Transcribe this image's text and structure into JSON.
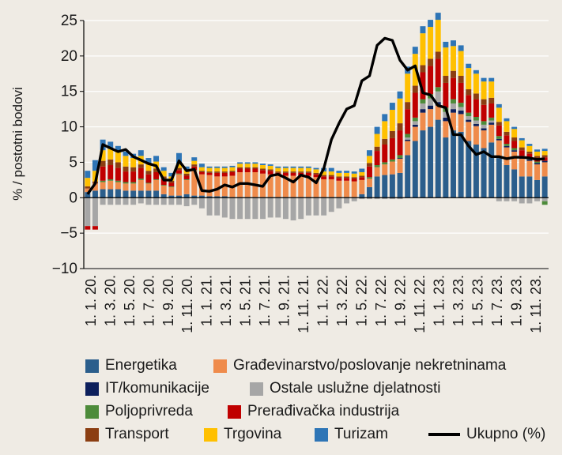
{
  "colors": {
    "background": "#efebe4",
    "grid": "#ffffff",
    "energetika": "#2b5e8c",
    "gradevinarstvo": "#ef8b4b",
    "it": "#0d1f5c",
    "ostale": "#a6a6a6",
    "poljoprivreda": "#4d8b3a",
    "preradivacka": "#c00000",
    "transport": "#8b3e12",
    "trgovina": "#ffc000",
    "turizam": "#2e75b6",
    "ukupno": "#000000"
  },
  "chart_data": {
    "type": "bar",
    "stacked": true,
    "title": "",
    "xlabel": "",
    "ylabel": "% / postotni bodovi",
    "ylim": [
      -10,
      25
    ],
    "yticks": [
      25,
      20,
      15,
      10,
      5,
      0,
      -5,
      -10
    ],
    "grid": "horizontal",
    "legend_position": "bottom",
    "x_tick_labels": [
      "1. 1. 20.",
      "1. 3. 20.",
      "1. 5. 20.",
      "1. 7. 20.",
      "1. 9. 20.",
      "1. 11. 20.",
      "1. 1. 21.",
      "1. 3. 21.",
      "1. 5. 21.",
      "1. 7. 21.",
      "1. 9. 21.",
      "1. 11. 21.",
      "1. 1. 22.",
      "1. 3. 22.",
      "1. 5. 22.",
      "1. 7. 22.",
      "1. 9. 22.",
      "1. 11. 22.",
      "1. 1. 23.",
      "1. 3. 23.",
      "1. 5. 23.",
      "1. 7. 23.",
      "1. 9. 23.",
      "1. 11. 23."
    ],
    "series": [
      {
        "name": "Energetika",
        "values": [
          0.8,
          1.0,
          1.2,
          1.2,
          1.2,
          1.0,
          1.0,
          1.0,
          1.0,
          1.0,
          0.5,
          0.3,
          0.3,
          0.5,
          0.3,
          0.3,
          0.2,
          0.2,
          0.2,
          0.1,
          0.1,
          0.1,
          0.1,
          0.1,
          0.1,
          0.1,
          0.1,
          0.1,
          0.1,
          0.1,
          0.1,
          0.1,
          0.1,
          0.1,
          0.1,
          0.1,
          0.5,
          1.5,
          3.0,
          3.2,
          3.3,
          3.5,
          6.0,
          8.0,
          9.5,
          10.0,
          11.0,
          8.5,
          9.5,
          9.3,
          8.0,
          7.5,
          7.0,
          7.8,
          5.6,
          4.6,
          4.0,
          3.0,
          3.0,
          2.5,
          3.0
        ]
      },
      {
        "name": "Građevinarstvo/poslovanje nekretninama",
        "values": [
          0.5,
          1.0,
          1.0,
          1.2,
          1.0,
          1.0,
          1.0,
          1.5,
          1.0,
          1.5,
          1.2,
          1.2,
          3.0,
          2.0,
          3.5,
          3.0,
          3.0,
          2.8,
          2.8,
          3.0,
          3.5,
          3.5,
          3.5,
          3.3,
          3.2,
          3.0,
          3.0,
          3.0,
          3.0,
          3.0,
          2.8,
          2.5,
          2.5,
          2.3,
          2.3,
          2.2,
          2.0,
          1.2,
          1.3,
          1.5,
          1.8,
          2.0,
          2.0,
          2.0,
          2.5,
          2.5,
          2.0,
          2.3,
          2.5,
          2.5,
          2.7,
          2.6,
          2.5,
          2.5,
          2.5,
          2.5,
          2.5,
          2.5,
          2.2,
          2.2,
          2.0
        ]
      },
      {
        "name": "IT/komunikacije",
        "values": [
          0,
          0,
          0,
          0,
          0,
          0,
          0,
          0,
          0,
          0,
          0,
          0,
          0,
          0,
          0,
          0,
          0,
          0,
          0,
          0,
          0,
          0,
          0,
          0,
          0,
          0,
          0,
          0,
          0,
          0,
          0,
          0,
          0,
          0,
          0,
          0,
          0,
          0,
          0,
          0,
          0,
          0.1,
          0.2,
          0.3,
          0.5,
          0.5,
          0.5,
          0.5,
          0.5,
          0.5,
          0.3,
          0.3,
          0.3,
          0.3,
          0.2,
          0.2,
          0.2,
          0.2,
          0.2,
          0.2,
          0.2
        ]
      },
      {
        "name": "Ostale uslužne djelatnosti",
        "values": [
          -4.0,
          -4.0,
          -1.0,
          -1.0,
          -1.0,
          -1.0,
          -1.0,
          -0.8,
          -1.0,
          -1.0,
          -1.0,
          -1.0,
          -1.0,
          -1.2,
          -1.0,
          -1.5,
          -2.5,
          -2.5,
          -2.8,
          -3.0,
          -3.0,
          -3.0,
          -3.0,
          -3.0,
          -2.8,
          -2.8,
          -3.0,
          -3.2,
          -3.0,
          -2.5,
          -2.5,
          -2.5,
          -2.0,
          -1.5,
          -0.8,
          -0.5,
          -0.2,
          -0.2,
          -0.2,
          -0.2,
          -0.2,
          -0.2,
          0.3,
          0.5,
          0.8,
          1.0,
          1.5,
          0.8,
          0.8,
          0.5,
          0.5,
          0.5,
          0.5,
          0.3,
          -0.5,
          -0.5,
          -0.5,
          -0.8,
          -0.8,
          -0.5,
          -0.5
        ]
      },
      {
        "name": "Poljoprivreda",
        "values": [
          0,
          0,
          0.2,
          0.2,
          0.2,
          0.2,
          0.2,
          0.2,
          0.1,
          0.1,
          0.1,
          0.1,
          0.1,
          0.1,
          0.1,
          0,
          0,
          0,
          0,
          0,
          0,
          0,
          0,
          0,
          0,
          0,
          0,
          0,
          0,
          0,
          0,
          0,
          0,
          0,
          0,
          0,
          0,
          0.2,
          0.3,
          0.3,
          0.3,
          0.4,
          0.5,
          0.5,
          0.6,
          0.6,
          0.6,
          0.6,
          0.6,
          0.6,
          0.5,
          0.5,
          0.5,
          0.4,
          0.4,
          0.3,
          0.3,
          0.2,
          0.2,
          0.2,
          -0.5
        ]
      },
      {
        "name": "Prerađivačka industrija",
        "values": [
          -0.5,
          -0.5,
          2.0,
          2.0,
          1.8,
          1.5,
          1.5,
          1.5,
          1.2,
          1.0,
          0.8,
          0.5,
          0.5,
          0.5,
          0.5,
          0.3,
          0.3,
          0.5,
          0.5,
          0.5,
          0.5,
          0.5,
          0.5,
          0.5,
          0.5,
          0.4,
          0.4,
          0.4,
          0.4,
          0.4,
          0.4,
          0.4,
          0.4,
          0.4,
          0.4,
          0.4,
          0.4,
          1.5,
          2.0,
          2.5,
          3.0,
          3.5,
          3.5,
          3.5,
          3.8,
          4.0,
          4.0,
          3.5,
          3.0,
          2.8,
          2.5,
          2.5,
          2.3,
          2.0,
          1.5,
          1.2,
          1.0,
          0.8,
          0.6,
          0.5,
          0.5
        ]
      },
      {
        "name": "Transport",
        "values": [
          0.3,
          0.3,
          0.8,
          0.8,
          0.8,
          0.7,
          0.6,
          0.5,
          0.5,
          0.5,
          0.4,
          0.3,
          0.3,
          0.3,
          0.3,
          0.2,
          0.2,
          0.2,
          0.2,
          0.2,
          0.2,
          0.2,
          0.2,
          0.2,
          0.2,
          0.2,
          0.2,
          0.2,
          0.2,
          0.2,
          0.2,
          0.2,
          0.2,
          0.2,
          0.2,
          0.2,
          0.2,
          0.5,
          0.6,
          0.8,
          1.0,
          1.0,
          1.0,
          1.0,
          1.0,
          1.0,
          1.0,
          1.0,
          1.0,
          1.0,
          0.8,
          0.8,
          0.8,
          0.8,
          0.5,
          0.5,
          0.5,
          0.4,
          0.3,
          0.3,
          0.3
        ]
      },
      {
        "name": "Trgovina",
        "values": [
          1.2,
          1.5,
          1.5,
          1.5,
          1.5,
          1.5,
          1.3,
          1.2,
          1.0,
          1.0,
          0.8,
          0.6,
          0.6,
          0.5,
          0.5,
          0.5,
          0.5,
          0.5,
          0.5,
          0.5,
          0.5,
          0.5,
          0.5,
          0.5,
          0.5,
          0.5,
          0.5,
          0.5,
          0.5,
          0.5,
          0.5,
          0.5,
          0.5,
          0.5,
          0.5,
          0.5,
          0.5,
          1.0,
          1.8,
          2.5,
          3.0,
          3.5,
          4.0,
          4.5,
          4.5,
          4.5,
          4.5,
          4.0,
          3.5,
          3.5,
          3.0,
          2.8,
          2.5,
          2.3,
          2.0,
          1.5,
          1.2,
          1.0,
          0.8,
          0.6,
          0.6
        ]
      },
      {
        "name": "Turizam",
        "values": [
          1.0,
          1.5,
          1.5,
          1.0,
          0.8,
          0.6,
          0.6,
          0.8,
          0.8,
          0.8,
          0.5,
          0.5,
          1.5,
          0.5,
          0.5,
          0.5,
          0.2,
          0.2,
          0.2,
          0.2,
          0.2,
          0.2,
          0.2,
          0.2,
          0.2,
          0.2,
          0.2,
          0.2,
          0.2,
          0.2,
          0.2,
          0.5,
          0.5,
          0.3,
          0.3,
          0.3,
          0.5,
          0.8,
          1.0,
          1.0,
          1.0,
          1.0,
          1.0,
          1.0,
          1.0,
          1.0,
          1.0,
          0.8,
          0.8,
          0.8,
          0.6,
          0.5,
          0.5,
          0.5,
          0.5,
          0.4,
          0.3,
          0.3,
          0.3,
          0.3,
          0.3
        ]
      },
      {
        "name": "Ukupno (%)",
        "type": "line",
        "values": [
          0.5,
          2.0,
          7.5,
          7.0,
          6.5,
          6.8,
          5.8,
          5.3,
          4.8,
          4.5,
          2.5,
          2.5,
          5.2,
          3.8,
          4.0,
          1.0,
          0.9,
          1.2,
          1.8,
          1.5,
          2.0,
          2.0,
          1.8,
          1.6,
          3.1,
          3.3,
          2.8,
          2.2,
          3.2,
          2.9,
          2.1,
          4.1,
          8.2,
          10.5,
          12.5,
          13.0,
          16.5,
          17.2,
          21.5,
          22.5,
          22.2,
          19.4,
          18.0,
          18.6,
          14.8,
          14.5,
          13.0,
          12.7,
          8.9,
          8.9,
          7.3,
          6.1,
          6.5,
          5.8,
          5.8,
          5.5,
          5.7,
          5.7,
          5.6,
          5.4,
          5.5
        ]
      }
    ]
  },
  "legend": [
    {
      "label": "Energetika",
      "color_key": "energetika",
      "kind": "swatch"
    },
    {
      "label": "Građevinarstvo/poslovanje nekretninama",
      "color_key": "gradevinarstvo",
      "kind": "swatch"
    },
    {
      "label": "IT/komunikacije",
      "color_key": "it",
      "kind": "swatch"
    },
    {
      "label": "Ostale uslužne djelatnosti",
      "color_key": "ostale",
      "kind": "swatch"
    },
    {
      "label": "Poljoprivreda",
      "color_key": "poljoprivreda",
      "kind": "swatch"
    },
    {
      "label": "Prerađivačka industrija",
      "color_key": "preradivacka",
      "kind": "swatch"
    },
    {
      "label": "Transport",
      "color_key": "transport",
      "kind": "swatch"
    },
    {
      "label": "Trgovina",
      "color_key": "trgovina",
      "kind": "swatch"
    },
    {
      "label": "Turizam",
      "color_key": "turizam",
      "kind": "swatch"
    },
    {
      "label": "Ukupno (%)",
      "color_key": "ukupno",
      "kind": "line"
    }
  ]
}
